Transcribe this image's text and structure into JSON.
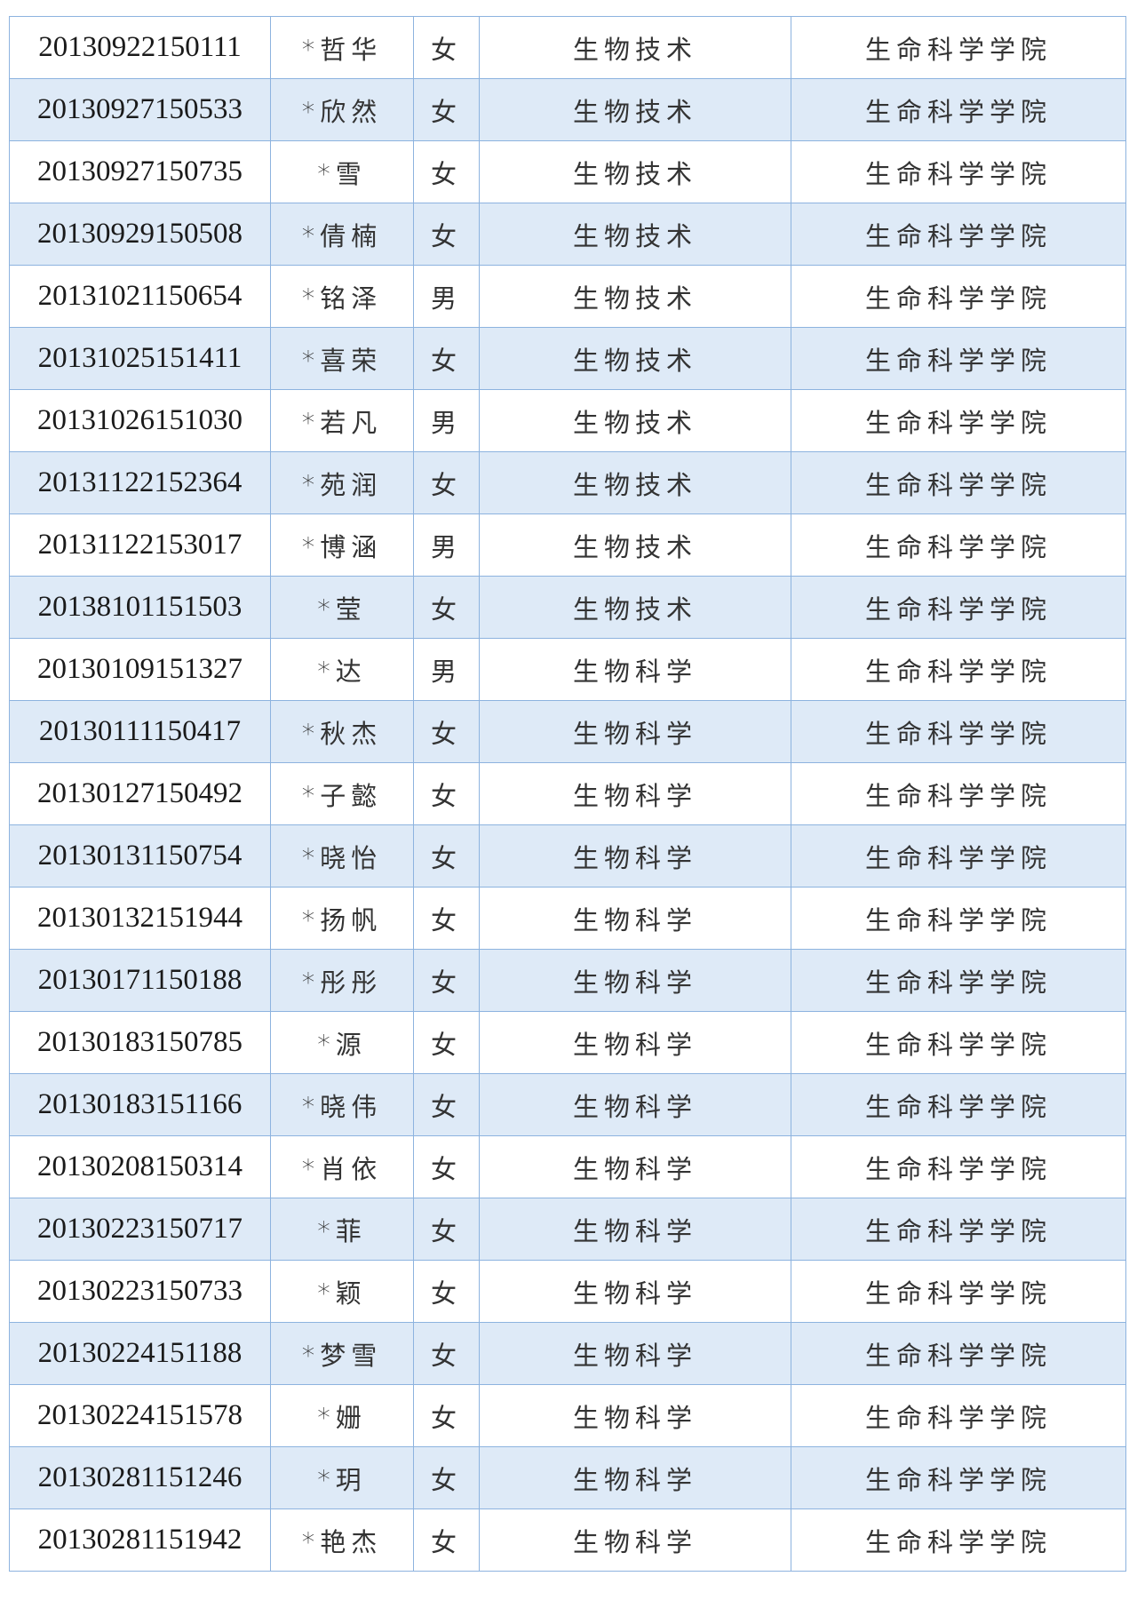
{
  "colors": {
    "border": "#8db3df",
    "alt_row": "#deeaf7"
  },
  "rows": [
    {
      "id": "20130922150111",
      "name": "*哲华",
      "gender": "女",
      "major": "生物技术",
      "college": "生命科学学院"
    },
    {
      "id": "20130927150533",
      "name": "*欣然",
      "gender": "女",
      "major": "生物技术",
      "college": "生命科学学院"
    },
    {
      "id": "20130927150735",
      "name": "*雪",
      "gender": "女",
      "major": "生物技术",
      "college": "生命科学学院"
    },
    {
      "id": "20130929150508",
      "name": "*倩楠",
      "gender": "女",
      "major": "生物技术",
      "college": "生命科学学院"
    },
    {
      "id": "20131021150654",
      "name": "*铭泽",
      "gender": "男",
      "major": "生物技术",
      "college": "生命科学学院"
    },
    {
      "id": "20131025151411",
      "name": "*喜荣",
      "gender": "女",
      "major": "生物技术",
      "college": "生命科学学院"
    },
    {
      "id": "20131026151030",
      "name": "*若凡",
      "gender": "男",
      "major": "生物技术",
      "college": "生命科学学院"
    },
    {
      "id": "20131122152364",
      "name": "*苑润",
      "gender": "女",
      "major": "生物技术",
      "college": "生命科学学院"
    },
    {
      "id": "20131122153017",
      "name": "*博涵",
      "gender": "男",
      "major": "生物技术",
      "college": "生命科学学院"
    },
    {
      "id": "20138101151503",
      "name": "*莹",
      "gender": "女",
      "major": "生物技术",
      "college": "生命科学学院"
    },
    {
      "id": "20130109151327",
      "name": "*达",
      "gender": "男",
      "major": "生物科学",
      "college": "生命科学学院"
    },
    {
      "id": "20130111150417",
      "name": "*秋杰",
      "gender": "女",
      "major": "生物科学",
      "college": "生命科学学院"
    },
    {
      "id": "20130127150492",
      "name": "*子懿",
      "gender": "女",
      "major": "生物科学",
      "college": "生命科学学院"
    },
    {
      "id": "20130131150754",
      "name": "*晓怡",
      "gender": "女",
      "major": "生物科学",
      "college": "生命科学学院"
    },
    {
      "id": "20130132151944",
      "name": "*扬帆",
      "gender": "女",
      "major": "生物科学",
      "college": "生命科学学院"
    },
    {
      "id": "20130171150188",
      "name": "*彤彤",
      "gender": "女",
      "major": "生物科学",
      "college": "生命科学学院"
    },
    {
      "id": "20130183150785",
      "name": "*源",
      "gender": "女",
      "major": "生物科学",
      "college": "生命科学学院"
    },
    {
      "id": "20130183151166",
      "name": "*晓伟",
      "gender": "女",
      "major": "生物科学",
      "college": "生命科学学院"
    },
    {
      "id": "20130208150314",
      "name": "*肖依",
      "gender": "女",
      "major": "生物科学",
      "college": "生命科学学院"
    },
    {
      "id": "20130223150717",
      "name": "*菲",
      "gender": "女",
      "major": "生物科学",
      "college": "生命科学学院"
    },
    {
      "id": "20130223150733",
      "name": "*颖",
      "gender": "女",
      "major": "生物科学",
      "college": "生命科学学院"
    },
    {
      "id": "20130224151188",
      "name": "*梦雪",
      "gender": "女",
      "major": "生物科学",
      "college": "生命科学学院"
    },
    {
      "id": "20130224151578",
      "name": "*姗",
      "gender": "女",
      "major": "生物科学",
      "college": "生命科学学院"
    },
    {
      "id": "20130281151246",
      "name": "*玥",
      "gender": "女",
      "major": "生物科学",
      "college": "生命科学学院"
    },
    {
      "id": "20130281151942",
      "name": "*艳杰",
      "gender": "女",
      "major": "生物科学",
      "college": "生命科学学院"
    }
  ]
}
